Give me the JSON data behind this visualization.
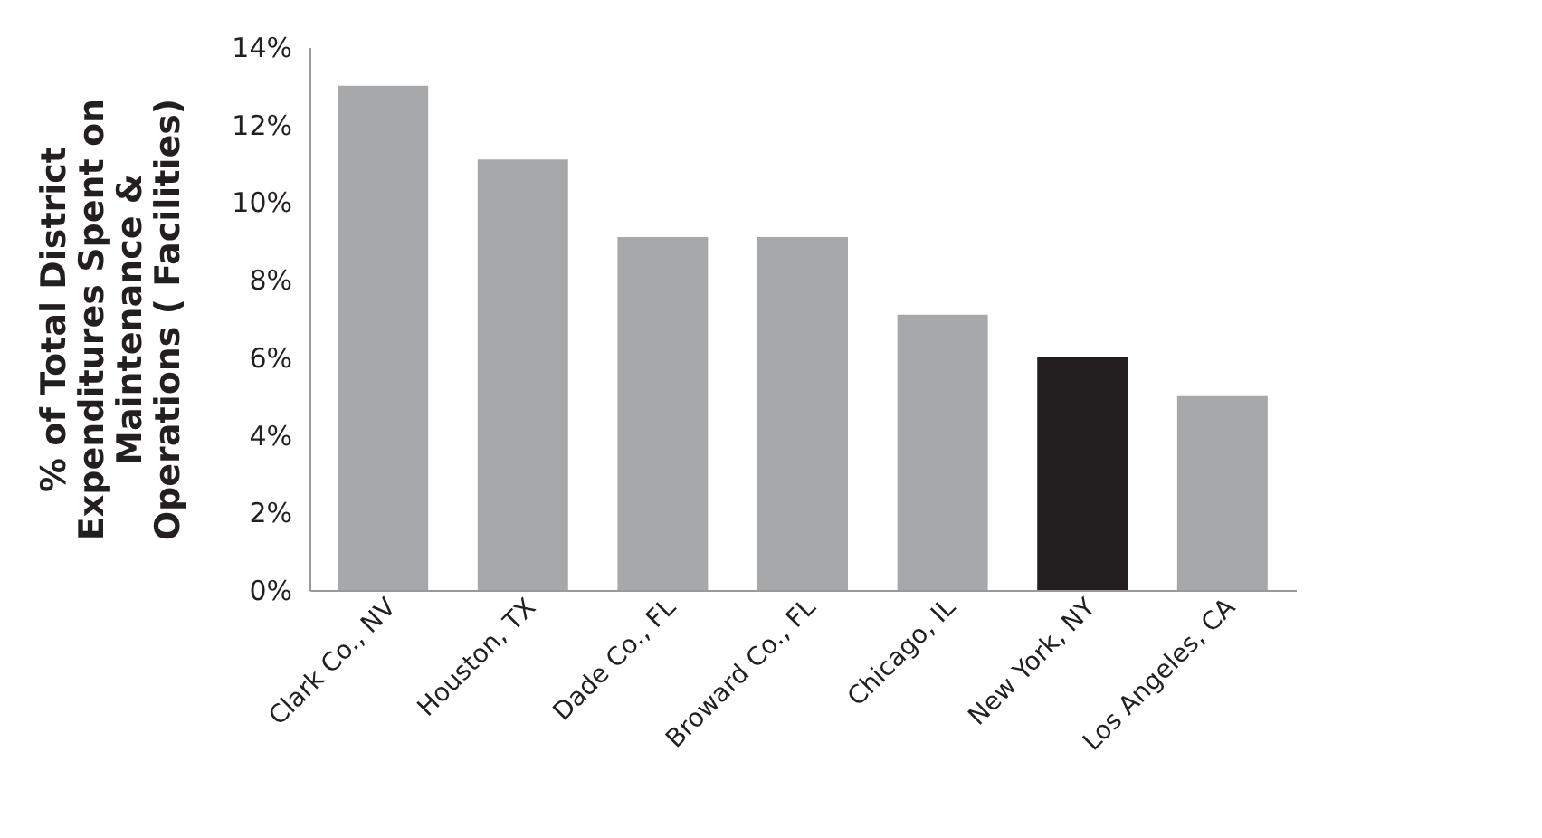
{
  "chart_data": {
    "type": "bar",
    "ylabel": "% of Total District\nExpenditures Spent on\nMaintenance &\nOperations ( Facilities)",
    "categories": [
      "Clark Co., NV",
      "Houston, TX",
      "Dade Co., FL",
      "Broward Co., FL",
      "Chicago, IL",
      "New York, NY",
      "Los Angeles, CA"
    ],
    "values": [
      13,
      11.1,
      9.1,
      9.1,
      7.1,
      6.0,
      5.0
    ],
    "colors": [
      "#a7a8aa",
      "#a7a8aa",
      "#a7a8aa",
      "#a7a8aa",
      "#a7a8aa",
      "#231f20",
      "#a7a8aa"
    ],
    "ylim": [
      0,
      14
    ],
    "yticks": [
      {
        "value": 0,
        "label": "0%"
      },
      {
        "value": 2,
        "label": "2%"
      },
      {
        "value": 4,
        "label": "4%"
      },
      {
        "value": 6,
        "label": "6%"
      },
      {
        "value": 8,
        "label": "8%"
      },
      {
        "value": 10,
        "label": "10%"
      },
      {
        "value": 12,
        "label": "12%"
      },
      {
        "value": 14,
        "label": "14%"
      }
    ],
    "grid": false
  }
}
